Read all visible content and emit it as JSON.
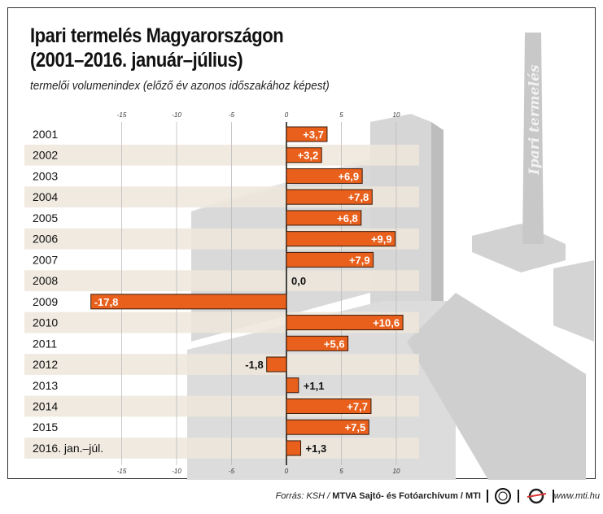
{
  "chart_data": {
    "type": "bar",
    "orientation": "horizontal",
    "title": "Ipari termelés Magyarországon",
    "title_line2": "(2001–2016. január–július)",
    "subtitle": "termelői volumenindex (előző év azonos időszakához képest)",
    "categories": [
      "2001",
      "2002",
      "2003",
      "2004",
      "2005",
      "2006",
      "2007",
      "2008",
      "2009",
      "2010",
      "2011",
      "2012",
      "2013",
      "2014",
      "2015",
      "2016. jan.–júl."
    ],
    "values": [
      3.7,
      3.2,
      6.9,
      7.8,
      6.8,
      9.9,
      7.9,
      0.0,
      -17.8,
      10.6,
      5.6,
      -1.8,
      1.1,
      7.7,
      7.5,
      1.3
    ],
    "labels": [
      "+3,7",
      "+3,2",
      "+6,9",
      "+7,8",
      "+6,8",
      "+9,9",
      "+7,9",
      "0,0",
      "-17,8",
      "+10,6",
      "+5,6",
      "-1,8",
      "+1,1",
      "+7,7",
      "+7,5",
      "+1,3"
    ],
    "xlim": [
      -18,
      12
    ],
    "ticks": [
      -15,
      -10,
      -5,
      0,
      5,
      10
    ],
    "tick_labels": [
      "-15",
      "-10",
      "-5",
      "0",
      "5",
      "10"
    ],
    "grid": true,
    "bar_color": "#e8601c",
    "stripe_color": "#ede6da",
    "watermark": "Ipari termelés"
  },
  "footer": {
    "source_prefix": "Forrás: KSH / ",
    "source_bold": "MTVA Sajtó- és Fotóarchívum / MTI",
    "logo1": "MTVA",
    "logo2": "MTI",
    "website": "www.mti.hu"
  }
}
